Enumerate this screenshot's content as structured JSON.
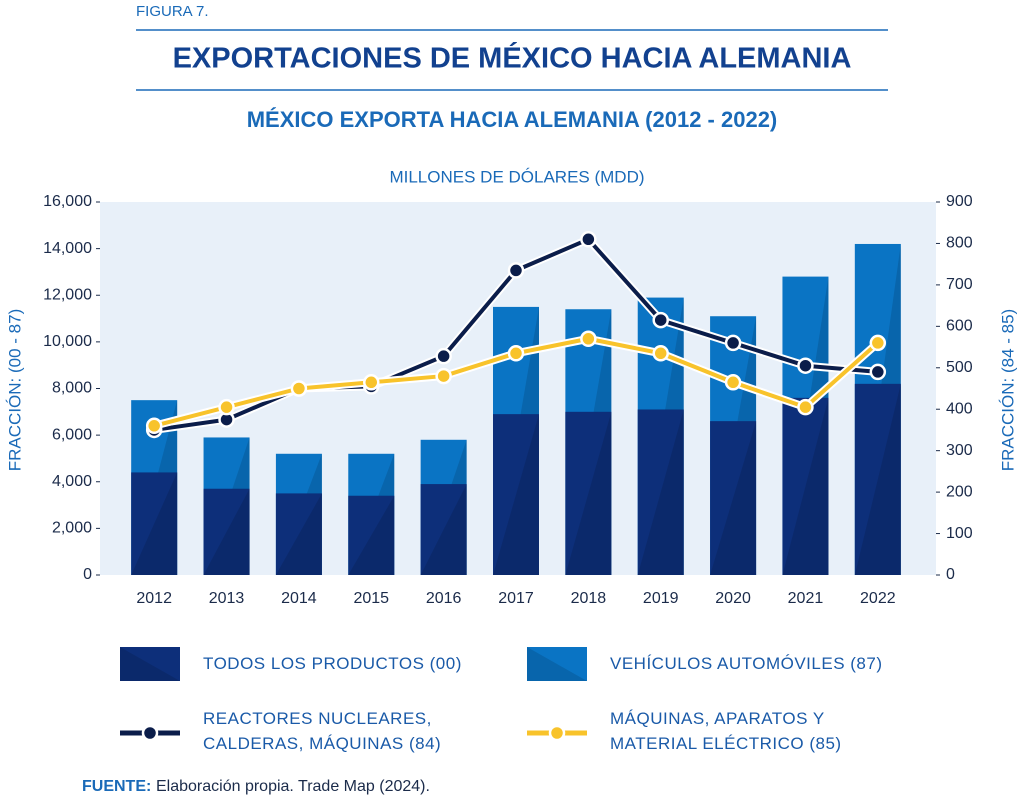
{
  "figure_label": "FIGURA 7.",
  "header_title": "EXPORTACIONES DE MÉXICO HACIA ALEMANIA",
  "source": {
    "label": "FUENTE:",
    "text": "Elaboración propia. Trade Map (2024)."
  },
  "chart_data": {
    "type": "bar",
    "title": "MÉXICO EXPORTA HACIA ALEMANIA (2012 - 2022)",
    "subtitle": "MILLONES DE DÓLARES (MDD)",
    "y_label": "FRACCIÓN: (00 - 87)",
    "y2_label": "FRACCIÓN: (84 - 85)",
    "categories": [
      "2012",
      "2013",
      "2014",
      "2015",
      "2016",
      "2017",
      "2018",
      "2019",
      "2020",
      "2021",
      "2022"
    ],
    "series": [
      {
        "name": "VEHÍCULOS AUTOMÓVILES (87)",
        "type": "bar",
        "color": "#0a74c4",
        "values": [
          7500,
          5900,
          5200,
          5200,
          5800,
          11500,
          11400,
          11900,
          11100,
          12800,
          14200
        ]
      },
      {
        "name": "TODOS LOS PRODUCTOS (00)",
        "type": "bar",
        "color": "#0d2f7a",
        "values": [
          4400,
          3700,
          3500,
          3400,
          3900,
          6900,
          7000,
          7100,
          6600,
          7600,
          8200
        ]
      },
      {
        "name": "REACTORES NUCLEARES,\nCALDERAS, MÁQUINAS (84)",
        "type": "line",
        "axis": "y2",
        "color": "#0b1d4a",
        "values": [
          350,
          375,
          450,
          455,
          528,
          735,
          810,
          615,
          560,
          505,
          490
        ]
      },
      {
        "name": "MÁQUINAS, APARATOS Y\nMATERIAL ELÉCTRICO (85)",
        "type": "line",
        "axis": "y2",
        "color": "#f8c32b",
        "values": [
          360,
          405,
          450,
          465,
          480,
          535,
          570,
          535,
          465,
          405,
          560
        ]
      }
    ],
    "ylim": [
      0,
      16000
    ],
    "yticks": [
      0,
      {
        "value": 2000,
        "label": "2,000"
      },
      {
        "value": 4000,
        "label": "4,000"
      },
      {
        "value": 6000,
        "label": "6,000"
      },
      {
        "value": 8000,
        "label": "8,000"
      },
      {
        "value": 10000,
        "label": "10,000"
      },
      {
        "value": 12000,
        "label": "12,000"
      },
      {
        "value": 14000,
        "label": "14,000"
      },
      {
        "value": 16000,
        "label": "16,000"
      }
    ],
    "y2lim": [
      0,
      900
    ],
    "y2ticks": [
      0,
      100,
      200,
      300,
      400,
      500,
      600,
      700,
      800,
      900
    ],
    "plot_background": "#e8f0f9"
  }
}
